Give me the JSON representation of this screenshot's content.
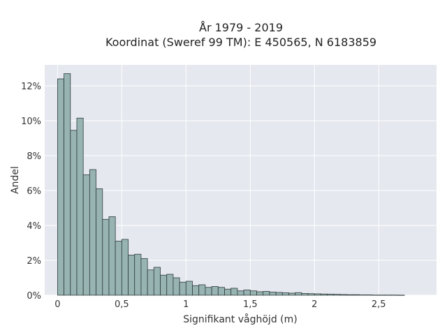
{
  "chart_data": {
    "type": "bar",
    "title_line1": "År 1979 - 2019",
    "title_line2": "Koordinat (Sweref 99 TM): E 450565, N 6183859",
    "xlabel": "Signifikant våghöjd (m)",
    "ylabel": "Andel",
    "xlim": [
      -0.1,
      2.95
    ],
    "ylim": [
      0,
      13.2
    ],
    "grid": true,
    "x_ticks": [
      {
        "value": 0,
        "label": "0"
      },
      {
        "value": 0.5,
        "label": "0,5"
      },
      {
        "value": 1,
        "label": "1"
      },
      {
        "value": 1.5,
        "label": "1,5"
      },
      {
        "value": 2,
        "label": "2"
      },
      {
        "value": 2.5,
        "label": "2,5"
      }
    ],
    "y_ticks": [
      {
        "value": 0,
        "label": "0%"
      },
      {
        "value": 2,
        "label": "2%"
      },
      {
        "value": 4,
        "label": "4%"
      },
      {
        "value": 6,
        "label": "6%"
      },
      {
        "value": 8,
        "label": "8%"
      },
      {
        "value": 10,
        "label": "10%"
      },
      {
        "value": 12,
        "label": "12%"
      }
    ],
    "bin_start": 0.0,
    "bin_width": 0.05,
    "values": [
      12.4,
      12.7,
      9.45,
      10.15,
      6.9,
      7.2,
      6.1,
      4.35,
      4.5,
      3.1,
      3.2,
      2.3,
      2.35,
      2.1,
      1.45,
      1.6,
      1.15,
      1.2,
      1.0,
      0.75,
      0.8,
      0.55,
      0.6,
      0.45,
      0.5,
      0.45,
      0.35,
      0.4,
      0.25,
      0.3,
      0.25,
      0.2,
      0.22,
      0.18,
      0.16,
      0.14,
      0.12,
      0.15,
      0.1,
      0.09,
      0.08,
      0.07,
      0.06,
      0.05,
      0.04,
      0.03,
      0.03,
      0.02,
      0.02,
      0.01,
      0.01,
      0.01,
      0.01,
      0.005
    ]
  },
  "colors": {
    "plot_bg": "#e5e8ef",
    "grid": "#ffffff",
    "bar_fill": "#97b4b3",
    "bar_stroke": "#2f3a3a"
  }
}
